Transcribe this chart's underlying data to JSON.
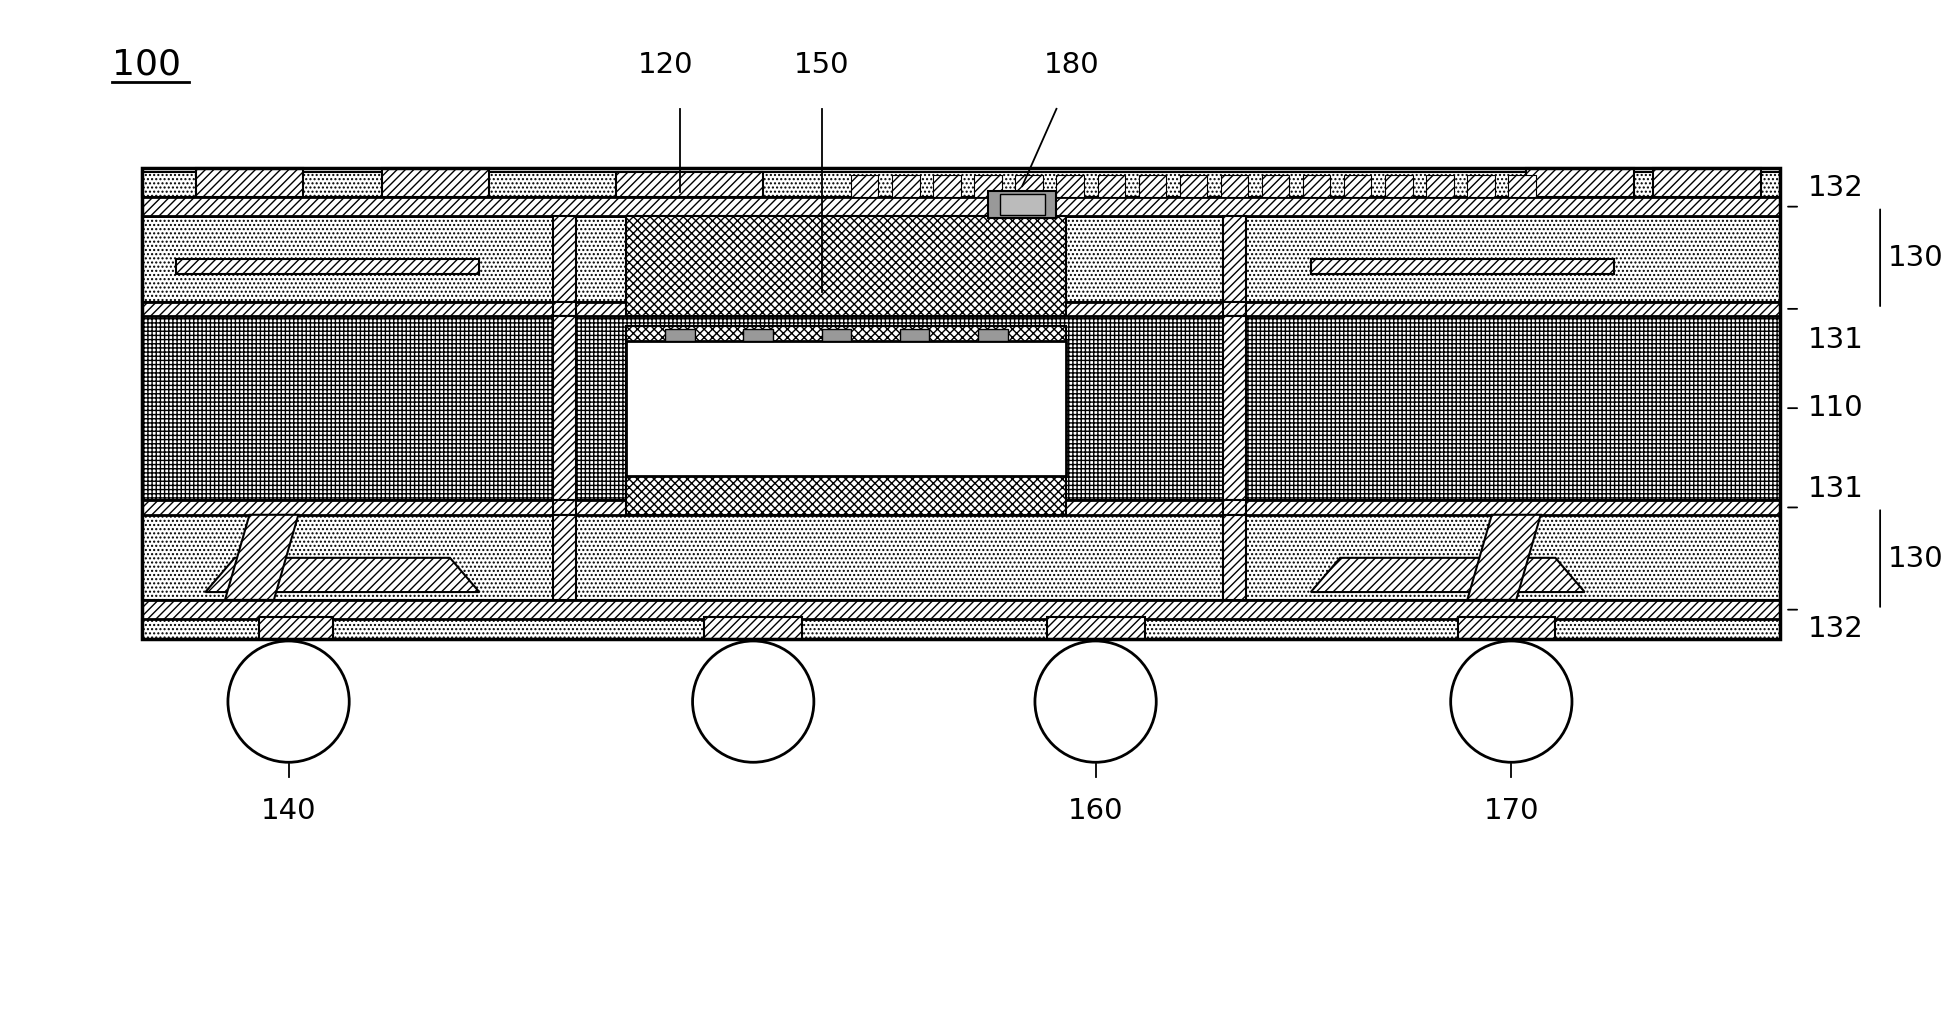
{
  "fig_width": 19.41,
  "fig_height": 10.1,
  "bg_color": "#ffffff",
  "line_color": "#000000",
  "label_100": "100",
  "label_110": "110",
  "label_120": "120",
  "label_130_top": "130",
  "label_130_bot": "130",
  "label_131_top": "131",
  "label_131_bot": "131",
  "label_132_top": "132",
  "label_132_bot": "132",
  "label_140": "140",
  "label_150": "150",
  "label_160": "160",
  "label_170": "170",
  "label_180": "180",
  "xlim": [
    0,
    1941
  ],
  "ylim": [
    0,
    1010
  ]
}
